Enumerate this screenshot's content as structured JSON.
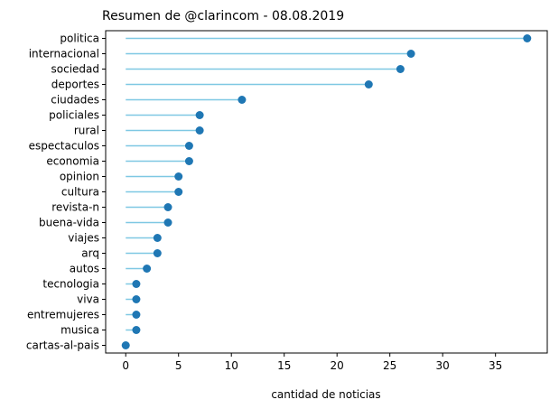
{
  "chart_data": {
    "type": "lollipop",
    "orientation": "horizontal",
    "title": "Resumen de @clarincom - 08.08.2019",
    "xlabel": "cantidad de noticias",
    "ylabel": "",
    "xlim": [
      -1.9,
      39.9
    ],
    "xticks": [
      0,
      5,
      10,
      15,
      20,
      25,
      30,
      35
    ],
    "grid": false,
    "legend": "none",
    "stem_color": "#7ec8e3",
    "marker_color": "#1f77b4",
    "categories": [
      "politica",
      "internacional",
      "sociedad",
      "deportes",
      "ciudades",
      "policiales",
      "rural",
      "espectaculos",
      "economia",
      "opinion",
      "cultura",
      "revista-n",
      "buena-vida",
      "viajes",
      "arq",
      "autos",
      "tecnologia",
      "viva",
      "entremujeres",
      "musica",
      "cartas-al-pais"
    ],
    "values": [
      38,
      27,
      26,
      23,
      11,
      7,
      7,
      6,
      6,
      5,
      5,
      4,
      4,
      3,
      3,
      2,
      1,
      1,
      1,
      1,
      0
    ]
  }
}
